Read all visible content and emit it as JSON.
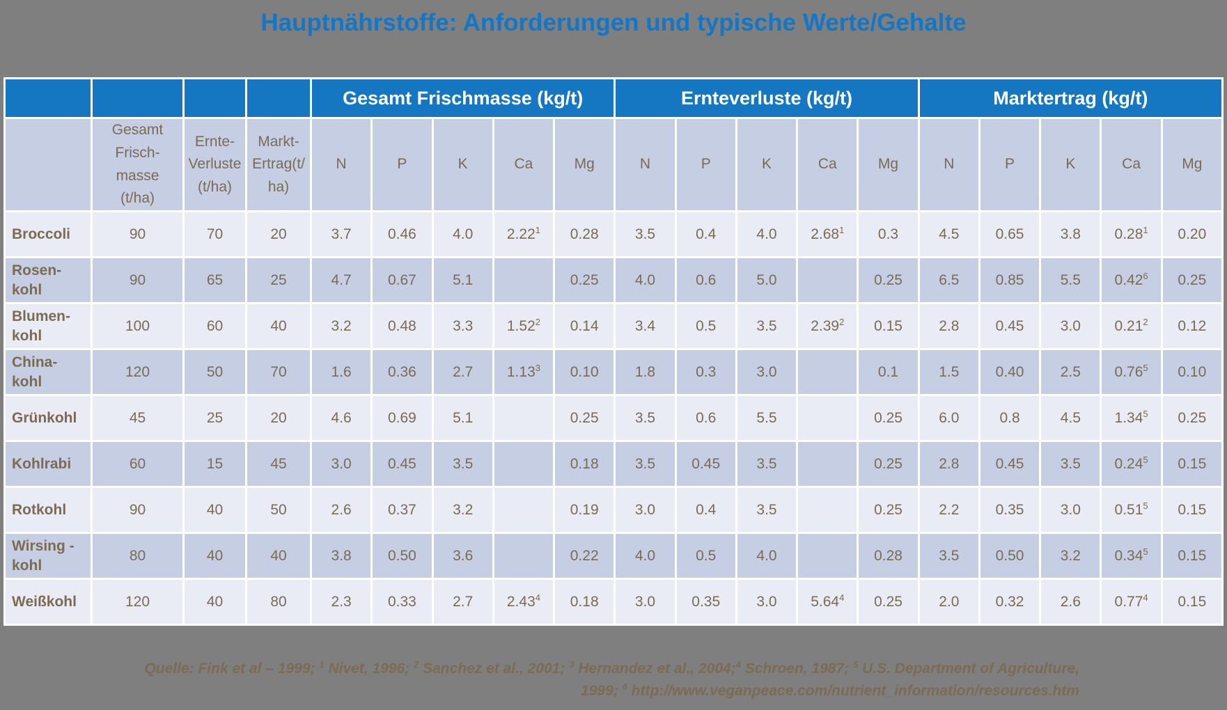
{
  "title": "Hauptnährstoffe: Anforderungen und typische Werte/Gehalte",
  "colors": {
    "page_bg": "#7f7f7f",
    "title_blue": "#1277c8",
    "header_blue": "#1577c2",
    "row_light": "#e9ebf5",
    "row_dark": "#c5cee3",
    "text_brown": "#7b6b53",
    "border_white": "#ffffff"
  },
  "table": {
    "group_headers": [
      "Gesamt Frischmasse (kg/t)",
      "Ernteverluste (kg/t)",
      "Marktertrag (kg/t)"
    ],
    "sub_headers": [
      "",
      "Gesamt\nFrisch-\nmasse\n(t/ha)",
      "Ernte-\nVerluste\n(t/ha)",
      "Markt-\nErtrag(t/\nha)",
      "N",
      "P",
      "K",
      "Ca",
      "Mg",
      "N",
      "P",
      "K",
      "Ca",
      "Mg",
      "N",
      "P",
      "K",
      "Ca",
      "Mg"
    ],
    "rows": [
      {
        "name": "Broccoli",
        "values": [
          "90",
          "70",
          "20",
          "3.7",
          "0.46",
          "4.0",
          "2.22^1",
          "0.28",
          "3.5",
          "0.4",
          "4.0",
          "2.68^1",
          "0.3",
          "4.5",
          "0.65",
          "3.8",
          "0.28^1",
          "0.20"
        ]
      },
      {
        "name": "Rosen-\nkohl",
        "values": [
          "90",
          "65",
          "25",
          "4.7",
          "0.67",
          "5.1",
          "",
          "0.25",
          "4.0",
          "0.6",
          "5.0",
          "",
          "0.25",
          "6.5",
          "0.85",
          "5.5",
          "0.42^6",
          "0.25"
        ]
      },
      {
        "name": "Blumen-\nkohl",
        "values": [
          "100",
          "60",
          "40",
          "3.2",
          "0.48",
          "3.3",
          "1.52^2",
          "0.14",
          "3.4",
          "0.5",
          "3.5",
          "2.39^2",
          "0.15",
          "2.8",
          "0.45",
          "3.0",
          "0.21^2",
          "0.12"
        ]
      },
      {
        "name": "China-\nkohl",
        "values": [
          "120",
          "50",
          "70",
          "1.6",
          "0.36",
          "2.7",
          "1.13^3",
          "0.10",
          "1.8",
          "0.3",
          "3.0",
          "",
          "0.1",
          "1.5",
          "0.40",
          "2.5",
          "0.76^5",
          "0.10"
        ]
      },
      {
        "name": "Grünkohl",
        "values": [
          "45",
          "25",
          "20",
          "4.6",
          "0.69",
          "5.1",
          "",
          "0.25",
          "3.5",
          "0.6",
          "5.5",
          "",
          "0.25",
          "6.0",
          "0.8",
          "4.5",
          "1.34^5",
          "0.25"
        ]
      },
      {
        "name": "Kohlrabi",
        "values": [
          "60",
          "15",
          "45",
          "3.0",
          "0.45",
          "3.5",
          "",
          "0.18",
          "3.5",
          "0.45",
          "3.5",
          "",
          "0.25",
          "2.8",
          "0.45",
          "3.5",
          "0.24^5",
          "0.15"
        ]
      },
      {
        "name": "Rotkohl",
        "values": [
          "90",
          "40",
          "50",
          "2.6",
          "0.37",
          "3.2",
          "",
          "0.19",
          "3.0",
          "0.4",
          "3.5",
          "",
          "0.25",
          "2.2",
          "0.35",
          "3.0",
          "0.51^5",
          "0.15"
        ]
      },
      {
        "name": "Wirsing -\nkohl",
        "values": [
          "80",
          "40",
          "40",
          "3.8",
          "0.50",
          "3.6",
          "",
          "0.22",
          "4.0",
          "0.5",
          "4.0",
          "",
          "0.28",
          "3.5",
          "0.50",
          "3.2",
          "0.34^5",
          "0.15"
        ]
      },
      {
        "name": "Weißkohl",
        "values": [
          "120",
          "40",
          "80",
          "2.3",
          "0.33",
          "2.7",
          "2.43^4",
          "0.18",
          "3.0",
          "0.35",
          "3.0",
          "5.64^4",
          "0.25",
          "2.0",
          "0.32",
          "2.6",
          "0.77^4",
          "0.15"
        ]
      }
    ]
  },
  "footer": {
    "line1": "Quelle: Fink et al – 1999; ^1 Nivet, 1996; ^2 Sanchez et al., 2001; ^3 Hernandez et al., 2004;^4 Schroen, 1987; ^5 U.S. Department of Agriculture,",
    "line2": "1999; ^6 http://www.veganpeace.com/nutrient_information/resources.htm"
  }
}
